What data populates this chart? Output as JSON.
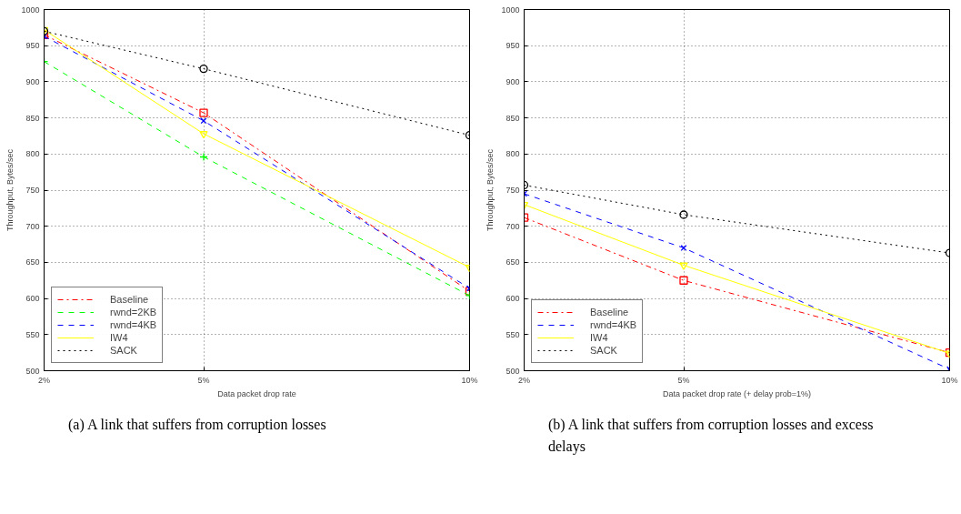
{
  "chart_data": [
    {
      "type": "line",
      "xlabel": "Data packet drop rate",
      "ylabel": "Throughput, Bytes/sec",
      "x": [
        2,
        5,
        10
      ],
      "xlim": [
        2,
        10
      ],
      "xticks": [
        {
          "value": 2,
          "label": "2%"
        },
        {
          "value": 5,
          "label": "5%"
        },
        {
          "value": 10,
          "label": "10%"
        }
      ],
      "ylim": [
        500,
        1000
      ],
      "yticks": [
        500,
        550,
        600,
        650,
        700,
        750,
        800,
        850,
        900,
        950,
        1000
      ],
      "grid": true,
      "legend": "bottom left",
      "annotations": [
        "(a) A link that suffers from corruption losses"
      ],
      "series": [
        {
          "name": "Baseline",
          "color": "#ff0000",
          "values": [
            965,
            857,
            610
          ],
          "marker": "square",
          "line_style": "dashdot"
        },
        {
          "name": "rwnd=2KB",
          "color": "#00ff00",
          "values": [
            928,
            796,
            604
          ],
          "marker": "cross",
          "line_style": "dashed"
        },
        {
          "name": "rwnd=4KB",
          "color": "#0000ff",
          "values": [
            963,
            846,
            614
          ],
          "marker": "x",
          "line_style": "dashed"
        },
        {
          "name": "IW4",
          "color": "#ffff00",
          "values": [
            972,
            828,
            643
          ],
          "marker": "triangle",
          "line_style": "solid"
        },
        {
          "name": "SACK",
          "color": "#000000",
          "values": [
            970,
            918,
            826
          ],
          "marker": "circle",
          "line_style": "dotted"
        }
      ]
    },
    {
      "type": "line",
      "xlabel": "Data packet drop rate (+ delay prob=1%)",
      "ylabel": "Throughput, Bytes/sec",
      "x": [
        2,
        5,
        10
      ],
      "xlim": [
        2,
        10
      ],
      "xticks": [
        {
          "value": 2,
          "label": "2%"
        },
        {
          "value": 5,
          "label": "5%"
        },
        {
          "value": 10,
          "label": "10%"
        }
      ],
      "ylim": [
        500,
        1000
      ],
      "yticks": [
        500,
        550,
        600,
        650,
        700,
        750,
        800,
        850,
        900,
        950,
        1000
      ],
      "grid": true,
      "legend": "bottom left",
      "annotations": [
        "(b) A link that suffers from corruption losses and excess delays"
      ],
      "series": [
        {
          "name": "Baseline",
          "color": "#ff0000",
          "values": [
            712,
            625,
            525
          ],
          "marker": "square",
          "line_style": "dashdot"
        },
        {
          "name": "rwnd=4KB",
          "color": "#0000ff",
          "values": [
            745,
            670,
            502
          ],
          "marker": "x",
          "line_style": "dashed"
        },
        {
          "name": "IW4",
          "color": "#ffff00",
          "values": [
            730,
            646,
            524
          ],
          "marker": "triangle",
          "line_style": "solid"
        },
        {
          "name": "SACK",
          "color": "#000000",
          "values": [
            757,
            716,
            663
          ],
          "marker": "circle",
          "line_style": "dotted"
        }
      ]
    }
  ]
}
